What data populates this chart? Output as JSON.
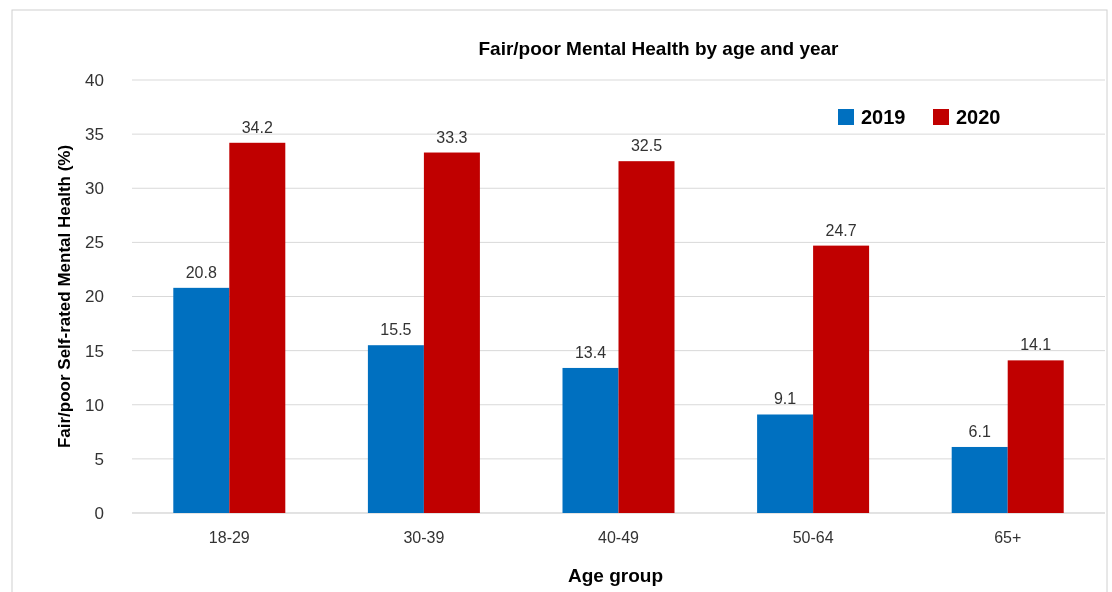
{
  "chart_data": {
    "type": "bar",
    "title": "Fair/poor Mental Health by age and year",
    "xlabel": "Age group",
    "ylabel": "Fair/poor Self-rated Mental Health (%)",
    "categories": [
      "18-29",
      "30-39",
      "40-49",
      "50-64",
      "65+"
    ],
    "series": [
      {
        "name": "2019",
        "color": "#0070c0",
        "values": [
          20.8,
          15.5,
          13.4,
          9.1,
          6.1
        ]
      },
      {
        "name": "2020",
        "color": "#c00000",
        "values": [
          34.2,
          33.3,
          32.5,
          24.7,
          14.1
        ]
      }
    ],
    "ylim": [
      0,
      40
    ],
    "yticks": [
      0,
      5,
      10,
      15,
      20,
      25,
      30,
      35,
      40
    ],
    "grid": "y",
    "legend": "top right",
    "data_labels": true
  }
}
